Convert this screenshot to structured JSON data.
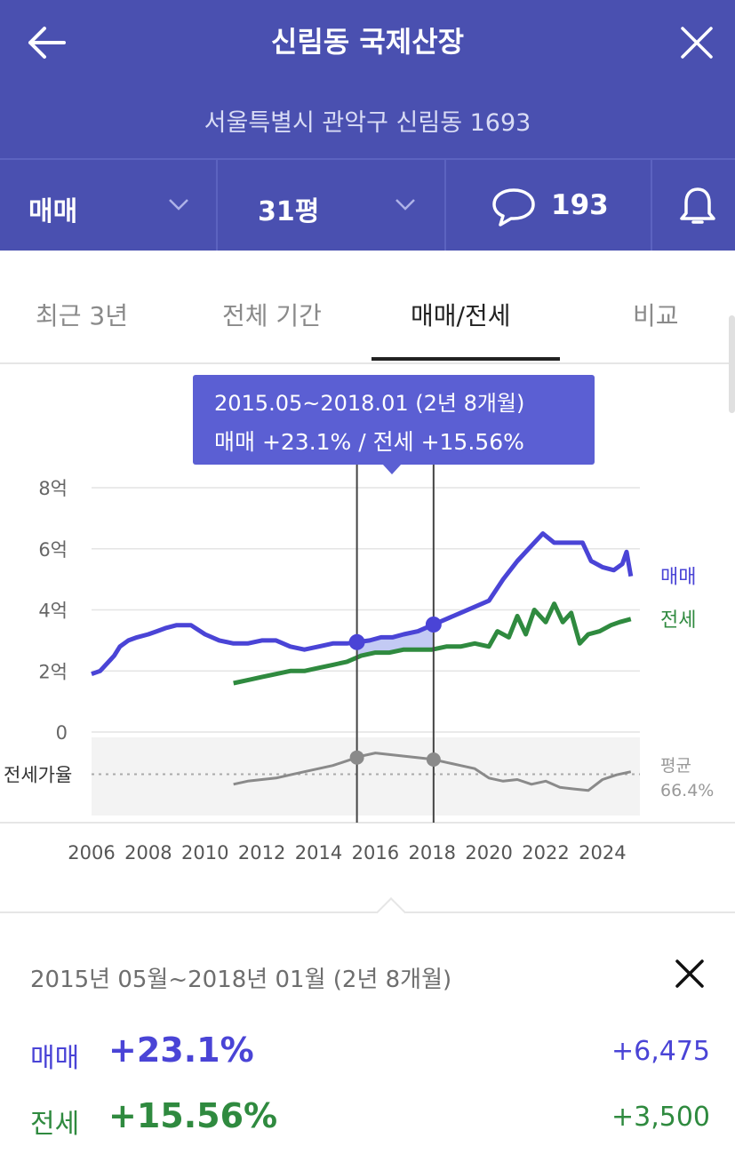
{
  "header": {
    "title": "신림동 국제산장",
    "address": "서울특별시 관악구 신림동 1693",
    "trade_type": "매매",
    "size": "31평",
    "comment_count": "193"
  },
  "tabs": [
    {
      "label": "최근 3년",
      "active": false
    },
    {
      "label": "전체 기간",
      "active": false
    },
    {
      "label": "매매/전세",
      "active": true
    },
    {
      "label": "비교",
      "active": false
    }
  ],
  "tooltip": {
    "period": "2015.05~2018.01 (2년 8개월)",
    "change": "매매 +23.1%  /  전세 +15.56%"
  },
  "colors": {
    "brand": "#4a50b0",
    "sale": "#4a44d6",
    "jeonse": "#2f8a3f",
    "ratio": "#8a8a8a",
    "tooltip": "#5b5fd3"
  },
  "chart_data": {
    "type": "line",
    "y_axis": {
      "ticks": [
        "8억",
        "6억",
        "4억",
        "2억",
        "0"
      ],
      "ylim": [
        0,
        8
      ]
    },
    "x_axis": {
      "ticks": [
        "2006",
        "2008",
        "2010",
        "2012",
        "2014",
        "2016",
        "2018",
        "2020",
        "2022",
        "2024"
      ],
      "xlim": [
        2006,
        2025.1
      ]
    },
    "grid": true,
    "legend": "right-inline",
    "series": [
      {
        "name": "매매",
        "color": "#4a44d6",
        "points": [
          [
            2006.0,
            1.9
          ],
          [
            2006.3,
            2.0
          ],
          [
            2006.6,
            2.3
          ],
          [
            2006.8,
            2.5
          ],
          [
            2007.0,
            2.8
          ],
          [
            2007.3,
            3.0
          ],
          [
            2007.6,
            3.1
          ],
          [
            2008.0,
            3.2
          ],
          [
            2008.3,
            3.3
          ],
          [
            2008.6,
            3.4
          ],
          [
            2009.0,
            3.5
          ],
          [
            2009.5,
            3.5
          ],
          [
            2010.0,
            3.2
          ],
          [
            2010.5,
            3.0
          ],
          [
            2011.0,
            2.9
          ],
          [
            2011.5,
            2.9
          ],
          [
            2012.0,
            3.0
          ],
          [
            2012.5,
            3.0
          ],
          [
            2013.0,
            2.8
          ],
          [
            2013.5,
            2.7
          ],
          [
            2014.0,
            2.8
          ],
          [
            2014.5,
            2.9
          ],
          [
            2015.0,
            2.9
          ],
          [
            2015.4,
            2.95
          ],
          [
            2015.8,
            3.0
          ],
          [
            2016.2,
            3.1
          ],
          [
            2016.6,
            3.1
          ],
          [
            2017.0,
            3.2
          ],
          [
            2017.5,
            3.3
          ],
          [
            2018.0,
            3.5
          ],
          [
            2018.5,
            3.7
          ],
          [
            2019.0,
            3.9
          ],
          [
            2019.5,
            4.1
          ],
          [
            2020.0,
            4.3
          ],
          [
            2020.5,
            5.0
          ],
          [
            2021.0,
            5.6
          ],
          [
            2021.5,
            6.1
          ],
          [
            2021.9,
            6.5
          ],
          [
            2022.3,
            6.2
          ],
          [
            2022.8,
            6.2
          ],
          [
            2023.3,
            6.2
          ],
          [
            2023.6,
            5.6
          ],
          [
            2024.0,
            5.4
          ],
          [
            2024.4,
            5.3
          ],
          [
            2024.7,
            5.5
          ],
          [
            2024.85,
            5.9
          ],
          [
            2025.0,
            5.1
          ]
        ]
      },
      {
        "name": "전세",
        "color": "#2f8a3f",
        "points": [
          [
            2011.0,
            1.6
          ],
          [
            2011.5,
            1.7
          ],
          [
            2012.0,
            1.8
          ],
          [
            2012.5,
            1.9
          ],
          [
            2013.0,
            2.0
          ],
          [
            2013.5,
            2.0
          ],
          [
            2014.0,
            2.1
          ],
          [
            2014.5,
            2.2
          ],
          [
            2015.0,
            2.3
          ],
          [
            2015.5,
            2.5
          ],
          [
            2016.0,
            2.6
          ],
          [
            2016.5,
            2.6
          ],
          [
            2017.0,
            2.7
          ],
          [
            2017.5,
            2.7
          ],
          [
            2018.0,
            2.7
          ],
          [
            2018.5,
            2.8
          ],
          [
            2019.0,
            2.8
          ],
          [
            2019.5,
            2.9
          ],
          [
            2020.0,
            2.8
          ],
          [
            2020.3,
            3.3
          ],
          [
            2020.7,
            3.1
          ],
          [
            2021.0,
            3.8
          ],
          [
            2021.3,
            3.2
          ],
          [
            2021.6,
            4.0
          ],
          [
            2022.0,
            3.6
          ],
          [
            2022.3,
            4.2
          ],
          [
            2022.6,
            3.6
          ],
          [
            2022.9,
            3.9
          ],
          [
            2023.2,
            2.9
          ],
          [
            2023.5,
            3.2
          ],
          [
            2023.9,
            3.3
          ],
          [
            2024.3,
            3.5
          ],
          [
            2024.6,
            3.6
          ],
          [
            2025.0,
            3.7
          ]
        ]
      },
      {
        "name": "전세가율",
        "color": "#8a8a8a",
        "average_label": "평균",
        "average_value": "66.4%",
        "average": 66.4,
        "ylim": [
          40,
          90
        ],
        "points": [
          [
            2011.0,
            60
          ],
          [
            2011.5,
            62
          ],
          [
            2012.0,
            63
          ],
          [
            2012.5,
            64
          ],
          [
            2013.0,
            66
          ],
          [
            2013.5,
            68
          ],
          [
            2014.0,
            70
          ],
          [
            2014.5,
            72
          ],
          [
            2015.0,
            75
          ],
          [
            2015.5,
            78
          ],
          [
            2016.0,
            80
          ],
          [
            2016.5,
            79
          ],
          [
            2017.0,
            78
          ],
          [
            2017.5,
            77
          ],
          [
            2018.0,
            76
          ],
          [
            2018.5,
            74
          ],
          [
            2019.0,
            72
          ],
          [
            2019.5,
            70
          ],
          [
            2020.0,
            64
          ],
          [
            2020.5,
            62
          ],
          [
            2021.0,
            63
          ],
          [
            2021.5,
            60
          ],
          [
            2022.0,
            62
          ],
          [
            2022.5,
            58
          ],
          [
            2023.0,
            57
          ],
          [
            2023.5,
            56
          ],
          [
            2024.0,
            63
          ],
          [
            2024.5,
            66
          ],
          [
            2025.0,
            68
          ]
        ]
      }
    ],
    "selection": {
      "start": 2015.35,
      "end": 2018.05
    }
  },
  "summary": {
    "period": "2015년 05월~2018년 01월 (2년 8개월)",
    "rows": [
      {
        "label": "매매",
        "percent": "+23.1%",
        "amount": "+6,475"
      },
      {
        "label": "전세",
        "percent": "+15.56%",
        "amount": "+3,500"
      }
    ]
  }
}
